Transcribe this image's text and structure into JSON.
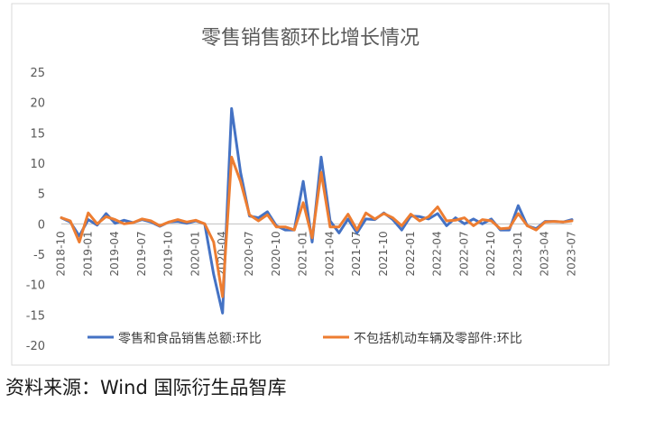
{
  "source_note": "资料来源：Wind 国际衍生品智库",
  "chart_data": {
    "type": "line",
    "title": "零售销售额环比增长情况",
    "xlabel": "",
    "ylabel": "",
    "ylim": [
      -20,
      25
    ],
    "yticks": [
      25,
      20,
      15,
      10,
      5,
      0,
      -5,
      -10,
      -15,
      -20
    ],
    "grid": false,
    "legend_position": "bottom",
    "categories": [
      "2018-10",
      "2018-11",
      "2018-12",
      "2019-01",
      "2019-02",
      "2019-03",
      "2019-04",
      "2019-05",
      "2019-06",
      "2019-07",
      "2019-08",
      "2019-09",
      "2019-10",
      "2019-11",
      "2019-12",
      "2020-01",
      "2020-02",
      "2020-03",
      "2020-04",
      "2020-05",
      "2020-06",
      "2020-07",
      "2020-08",
      "2020-09",
      "2020-10",
      "2020-11",
      "2020-12",
      "2021-01",
      "2021-02",
      "2021-03",
      "2021-04",
      "2021-05",
      "2021-06",
      "2021-07",
      "2021-08",
      "2021-09",
      "2021-10",
      "2021-11",
      "2021-12",
      "2022-01",
      "2022-02",
      "2022-03",
      "2022-04",
      "2022-05",
      "2022-06",
      "2022-07",
      "2022-08",
      "2022-09",
      "2022-10",
      "2022-11",
      "2022-12",
      "2023-01",
      "2023-02",
      "2023-03",
      "2023-04",
      "2023-05",
      "2023-06",
      "2023-07"
    ],
    "tick_labels": [
      "2018-10",
      "2019-01",
      "2019-04",
      "2019-07",
      "2019-10",
      "2020-01",
      "2020-04",
      "2020-07",
      "2020-10",
      "2021-01",
      "2021-04",
      "2021-07",
      "2021-10",
      "2022-01",
      "2022-04",
      "2022-07",
      "2022-10",
      "2023-01",
      "2023-04",
      "2023-07"
    ],
    "series": [
      {
        "name": "零售和食品销售总额:环比",
        "color": "#4472C4",
        "values": [
          1.0,
          0.3,
          -2.0,
          0.7,
          -0.2,
          1.7,
          0.1,
          0.6,
          0.2,
          0.7,
          0.3,
          -0.4,
          0.3,
          0.4,
          0.1,
          0.5,
          0.0,
          -8.3,
          -14.7,
          19.0,
          8.5,
          1.3,
          1.0,
          2.0,
          -0.3,
          -1.0,
          -1.0,
          7.0,
          -3.0,
          11.0,
          0.5,
          -1.5,
          0.8,
          -1.5,
          0.8,
          0.7,
          1.8,
          0.7,
          -1.0,
          1.3,
          1.2,
          0.8,
          1.7,
          -0.3,
          1.0,
          0.0,
          0.8,
          0.0,
          0.8,
          -1.0,
          -1.0,
          3.0,
          -0.3,
          -0.8,
          0.4,
          0.4,
          0.3,
          0.7
        ]
      },
      {
        "name": "不包括机动车辆及零部件:环比",
        "color": "#ED7D31",
        "values": [
          1.0,
          0.5,
          -3.0,
          1.8,
          0.0,
          1.2,
          0.7,
          0.0,
          0.2,
          0.8,
          0.5,
          -0.3,
          0.3,
          0.7,
          0.3,
          0.6,
          0.0,
          -3.0,
          -12.0,
          11.0,
          7.0,
          1.5,
          0.5,
          1.5,
          -0.5,
          -0.5,
          -1.0,
          3.5,
          -2.3,
          8.5,
          -0.5,
          -0.5,
          1.6,
          -1.0,
          1.8,
          0.8,
          1.7,
          1.0,
          -0.3,
          1.6,
          0.5,
          1.2,
          2.8,
          0.5,
          0.6,
          1.0,
          -0.3,
          0.7,
          0.5,
          -0.8,
          -0.7,
          1.7,
          -0.3,
          -1.0,
          0.3,
          0.4,
          0.3,
          0.5
        ]
      }
    ]
  }
}
